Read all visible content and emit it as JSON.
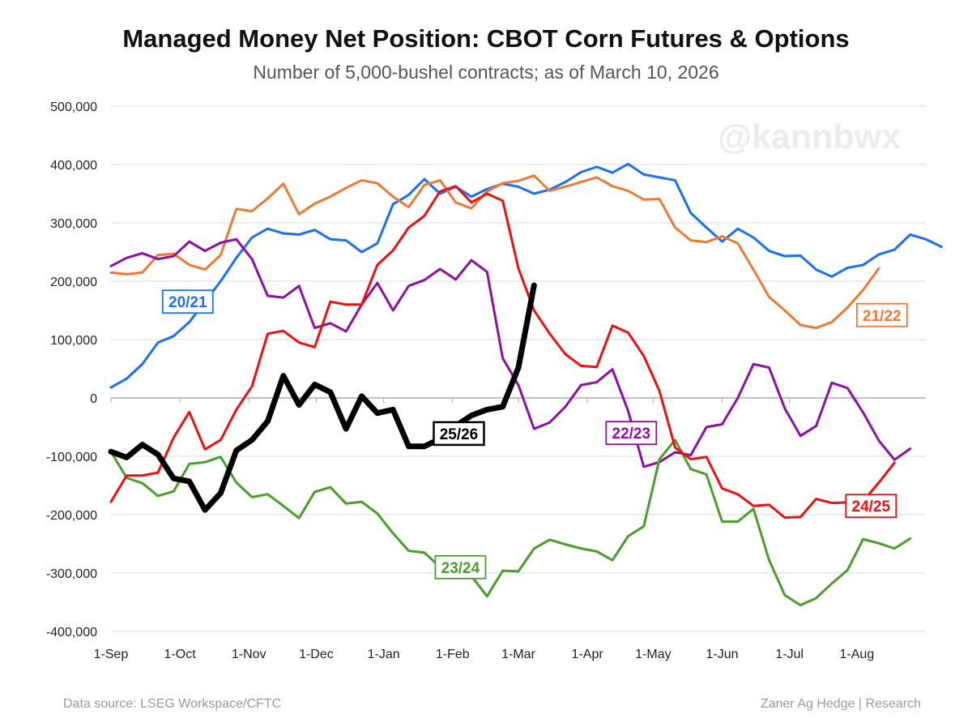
{
  "colors": {
    "s2021": "#1a6ff2",
    "s2122": "#ec7a35",
    "s2223": "#8d10a4",
    "s2324": "#4a9e2c",
    "s2425": "#ec1010",
    "s2526": "#000000",
    "grid": "#d9d9d9",
    "axis": "#aaaaaa",
    "watermark": "#ececec"
  },
  "footer": {
    "source": "Data source: LSEG Workspace/CFTC",
    "credit": "Zaner Ag Hedge | Research"
  },
  "chart_data": {
    "type": "line",
    "title": "Managed Money Net Position: CBOT Corn Futures & Options",
    "subtitle": "Number of 5,000-bushel contracts; as of March 10, 2026",
    "watermark": "@kannbwx",
    "xlabel": "",
    "ylabel": "",
    "xlim": [
      0,
      52
    ],
    "ylim": [
      -400000,
      500000
    ],
    "y_ticks": [
      -400000,
      -300000,
      -200000,
      -100000,
      0,
      100000,
      200000,
      300000,
      400000,
      500000
    ],
    "y_tick_labels": [
      "-400,000",
      "-300,000",
      "-200,000",
      "-100,000",
      "0",
      "100,000",
      "200,000",
      "300,000",
      "400,000",
      "500,000"
    ],
    "x_ticks": [
      0,
      4.4,
      8.8,
      13.1,
      17.4,
      21.8,
      26.0,
      30.4,
      34.6,
      39.0,
      43.3,
      47.6
    ],
    "x_tick_labels": [
      "1-Sep",
      "1-Oct",
      "1-Nov",
      "1-Dec",
      "1-Jan",
      "1-Feb",
      "1-Mar",
      "1-Apr",
      "1-May",
      "1-Jun",
      "1-Jul",
      "1-Aug"
    ],
    "series": [
      {
        "name": "20/21",
        "color_key": "s2021",
        "label_at": [
          4.9,
          165000
        ],
        "values": [
          18000,
          33000,
          58000,
          95000,
          106000,
          130000,
          165000,
          200000,
          240000,
          275000,
          290000,
          282000,
          280000,
          288000,
          272000,
          270000,
          250000,
          265000,
          332000,
          348000,
          375000,
          350000,
          362000,
          345000,
          358000,
          367000,
          362000,
          350000,
          357000,
          370000,
          387000,
          396000,
          386000,
          401000,
          383000,
          378000,
          373000,
          317000,
          292000,
          268000,
          290000,
          275000,
          252000,
          243000,
          244000,
          220000,
          208000,
          223000,
          228000,
          246000,
          254000,
          280000,
          272000,
          259000
        ]
      },
      {
        "name": "21/22",
        "color_key": "s2122",
        "label_at": [
          49.2,
          142000
        ],
        "values": [
          215000,
          212000,
          215000,
          245000,
          247000,
          228000,
          220000,
          245000,
          324000,
          320000,
          342000,
          367000,
          315000,
          333000,
          345000,
          360000,
          373000,
          368000,
          345000,
          327000,
          365000,
          373000,
          335000,
          325000,
          354000,
          368000,
          372000,
          381000,
          355000,
          362000,
          370000,
          378000,
          363000,
          355000,
          340000,
          341000,
          292000,
          270000,
          267000,
          277000,
          265000,
          220000,
          173000,
          150000,
          125000,
          120000,
          130000,
          155000,
          185000,
          222000
        ]
      },
      {
        "name": "22/23",
        "color_key": "s2223",
        "label_at": [
          33.2,
          -60000
        ],
        "values": [
          226000,
          240000,
          248000,
          238000,
          243000,
          268000,
          252000,
          266000,
          272000,
          238000,
          175000,
          172000,
          192000,
          120000,
          128000,
          114000,
          160000,
          197000,
          150000,
          192000,
          202000,
          221000,
          203000,
          236000,
          216000,
          68000,
          22000,
          -53000,
          -42000,
          -15000,
          22000,
          27000,
          49000,
          -22000,
          -118000,
          -110000,
          -93000,
          -98000,
          -50000,
          -45000,
          0,
          58000,
          52000,
          -18000,
          -65000,
          -48000,
          26000,
          17000,
          -25000,
          -73000,
          -106000,
          -87000
        ]
      },
      {
        "name": "23/24",
        "color_key": "s2324",
        "label_at": [
          22.3,
          -290000
        ],
        "values": [
          -92000,
          -137000,
          -146000,
          -168000,
          -160000,
          -113000,
          -110000,
          -101000,
          -145000,
          -170000,
          -165000,
          -185000,
          -206000,
          -161000,
          -153000,
          -181000,
          -178000,
          -198000,
          -232000,
          -262000,
          -265000,
          -290000,
          -298000,
          -305000,
          -340000,
          -296000,
          -297000,
          -258000,
          -243000,
          -251000,
          -258000,
          -263000,
          -278000,
          -237000,
          -220000,
          -105000,
          -72000,
          -122000,
          -131000,
          -212000,
          -212000,
          -190000,
          -278000,
          -338000,
          -355000,
          -343000,
          -318000,
          -295000,
          -242000,
          -249000,
          -258000,
          -241000
        ]
      },
      {
        "name": "24/25",
        "color_key": "s2425",
        "label_at": [
          48.5,
          -185000
        ],
        "values": [
          -178000,
          -133000,
          -133000,
          -128000,
          -68000,
          -24000,
          -88000,
          -72000,
          -20000,
          20000,
          110000,
          115000,
          95000,
          87000,
          165000,
          160000,
          160000,
          228000,
          253000,
          292000,
          312000,
          354000,
          363000,
          335000,
          350000,
          338000,
          222000,
          150000,
          110000,
          75000,
          55000,
          53000,
          124000,
          112000,
          72000,
          12000,
          -85000,
          -105000,
          -101000,
          -155000,
          -165000,
          -185000,
          -183000,
          -205000,
          -204000,
          -173000,
          -180000,
          -179000,
          -177000,
          -145000,
          -111000
        ]
      },
      {
        "name": "25/26",
        "color_key": "s2526",
        "label_at": [
          22.2,
          -61000
        ],
        "values": [
          -92000,
          -102000,
          -80000,
          -97000,
          -138000,
          -143000,
          -192000,
          -163000,
          -90000,
          -72000,
          -40000,
          38000,
          -12000,
          23000,
          10000,
          -53000,
          3000,
          -26000,
          -20000,
          -83000,
          -83000,
          -70000,
          -48000,
          -30000,
          -20000,
          -15000,
          52000,
          193000
        ]
      }
    ]
  }
}
